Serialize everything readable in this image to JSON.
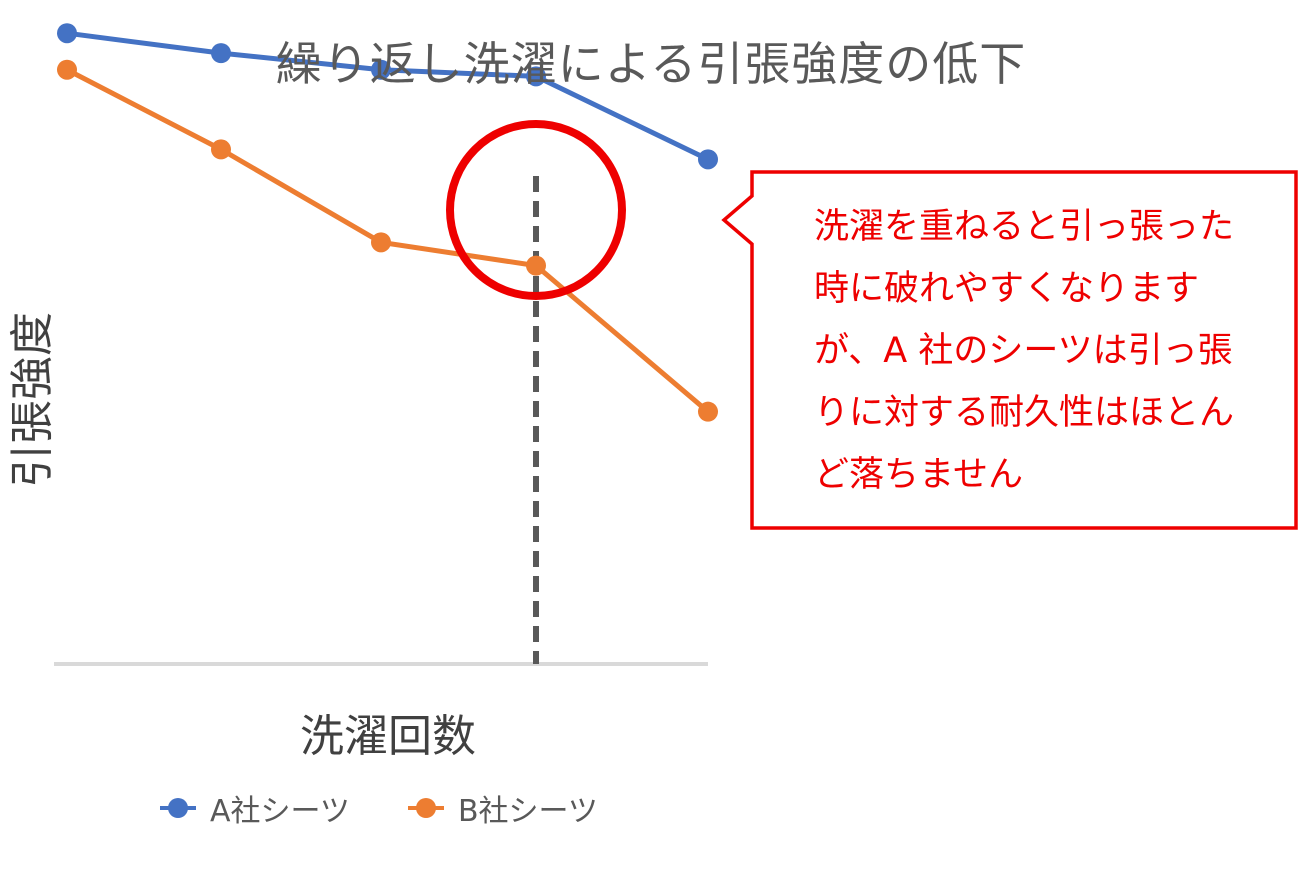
{
  "chart_data": {
    "type": "line",
    "title": "繰り返し洗濯による引張強度の低下",
    "xlabel": "洗濯回数",
    "ylabel": "引張強度",
    "categories": [
      "",
      "",
      "",
      "",
      ""
    ],
    "series": [
      {
        "name": "A社シーツ",
        "color": "#4472C4",
        "values": [
          95,
          92,
          89.5,
          88.5,
          76
        ]
      },
      {
        "name": "B社シーツ",
        "color": "#ED7D31",
        "values": [
          89.5,
          77.5,
          63.5,
          60,
          38
        ]
      }
    ],
    "ylim": [
      0,
      100
    ],
    "grid": false,
    "legend": "bottom",
    "annotations": {
      "highlight_index": 3,
      "dashed_marker_color": "#595959",
      "circle_color": "#ee0000",
      "callout": "洗濯を重ねると引っ張った時に破れやすくなりますが、A 社のシーツは引っ張りに対する耐久性はほとんど落ちません",
      "callout_color": "#ee0000"
    }
  }
}
